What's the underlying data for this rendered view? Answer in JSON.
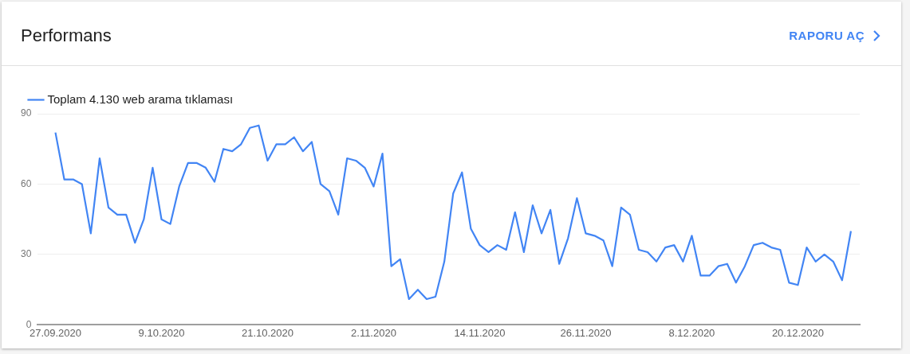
{
  "chart_data": {
    "type": "line",
    "title": "Performans",
    "annotations": [
      "RAPORU AÇ"
    ],
    "x": [
      "2020-09-27",
      "2020-09-28",
      "2020-09-29",
      "2020-09-30",
      "2020-10-01",
      "2020-10-02",
      "2020-10-03",
      "2020-10-04",
      "2020-10-05",
      "2020-10-06",
      "2020-10-07",
      "2020-10-08",
      "2020-10-09",
      "2020-10-10",
      "2020-10-11",
      "2020-10-12",
      "2020-10-13",
      "2020-10-14",
      "2020-10-15",
      "2020-10-16",
      "2020-10-17",
      "2020-10-18",
      "2020-10-19",
      "2020-10-20",
      "2020-10-21",
      "2020-10-22",
      "2020-10-23",
      "2020-10-24",
      "2020-10-25",
      "2020-10-26",
      "2020-10-27",
      "2020-10-28",
      "2020-10-29",
      "2020-10-30",
      "2020-10-31",
      "2020-11-01",
      "2020-11-02",
      "2020-11-03",
      "2020-11-04",
      "2020-11-05",
      "2020-11-06",
      "2020-11-07",
      "2020-11-08",
      "2020-11-09",
      "2020-11-10",
      "2020-11-11",
      "2020-11-12",
      "2020-11-13",
      "2020-11-14",
      "2020-11-15",
      "2020-11-16",
      "2020-11-17",
      "2020-11-18",
      "2020-11-19",
      "2020-11-20",
      "2020-11-21",
      "2020-11-22",
      "2020-11-23",
      "2020-11-24",
      "2020-11-25",
      "2020-11-26",
      "2020-11-27",
      "2020-11-28",
      "2020-11-29",
      "2020-11-30",
      "2020-12-01",
      "2020-12-02",
      "2020-12-03",
      "2020-12-04",
      "2020-12-05",
      "2020-12-06",
      "2020-12-07",
      "2020-12-08",
      "2020-12-09",
      "2020-12-10",
      "2020-12-11",
      "2020-12-12",
      "2020-12-13",
      "2020-12-14",
      "2020-12-15",
      "2020-12-16",
      "2020-12-17",
      "2020-12-18",
      "2020-12-19",
      "2020-12-20",
      "2020-12-21",
      "2020-12-22",
      "2020-12-23",
      "2020-12-24",
      "2020-12-25",
      "2020-12-26"
    ],
    "series": [
      {
        "name": "Toplam 4.130 web arama tıklaması",
        "color": "#4285f4",
        "values": [
          82,
          62,
          62,
          60,
          39,
          71,
          50,
          47,
          47,
          35,
          45,
          67,
          45,
          43,
          59,
          69,
          69,
          67,
          61,
          75,
          74,
          77,
          84,
          85,
          70,
          77,
          77,
          80,
          74,
          78,
          60,
          57,
          47,
          71,
          70,
          67,
          59,
          73,
          25,
          28,
          11,
          15,
          11,
          12,
          27,
          56,
          65,
          41,
          34,
          31,
          34,
          32,
          48,
          31,
          51,
          39,
          49,
          26,
          37,
          54,
          39,
          38,
          36,
          25,
          50,
          47,
          32,
          31,
          27,
          33,
          34,
          27,
          38,
          21,
          21,
          25,
          26,
          18,
          25,
          34,
          35,
          33,
          32,
          18,
          17,
          33,
          27,
          30,
          27,
          19,
          40
        ]
      }
    ],
    "xlim": [
      "2020-09-25",
      "2020-12-27"
    ],
    "xticks": [
      {
        "value": "2020-09-27",
        "label": "27.09.2020"
      },
      {
        "value": "2020-10-09",
        "label": "9.10.2020"
      },
      {
        "value": "2020-10-21",
        "label": "21.10.2020"
      },
      {
        "value": "2020-11-02",
        "label": "2.11.2020"
      },
      {
        "value": "2020-11-14",
        "label": "14.11.2020"
      },
      {
        "value": "2020-11-26",
        "label": "26.11.2020"
      },
      {
        "value": "2020-12-08",
        "label": "8.12.2020"
      },
      {
        "value": "2020-12-20",
        "label": "20.12.2020"
      }
    ],
    "ylim": [
      0,
      90
    ],
    "yticks": [
      0,
      30,
      60,
      90
    ],
    "grid": "y",
    "legend": "top left",
    "marker": "none",
    "line_style": "solid"
  }
}
